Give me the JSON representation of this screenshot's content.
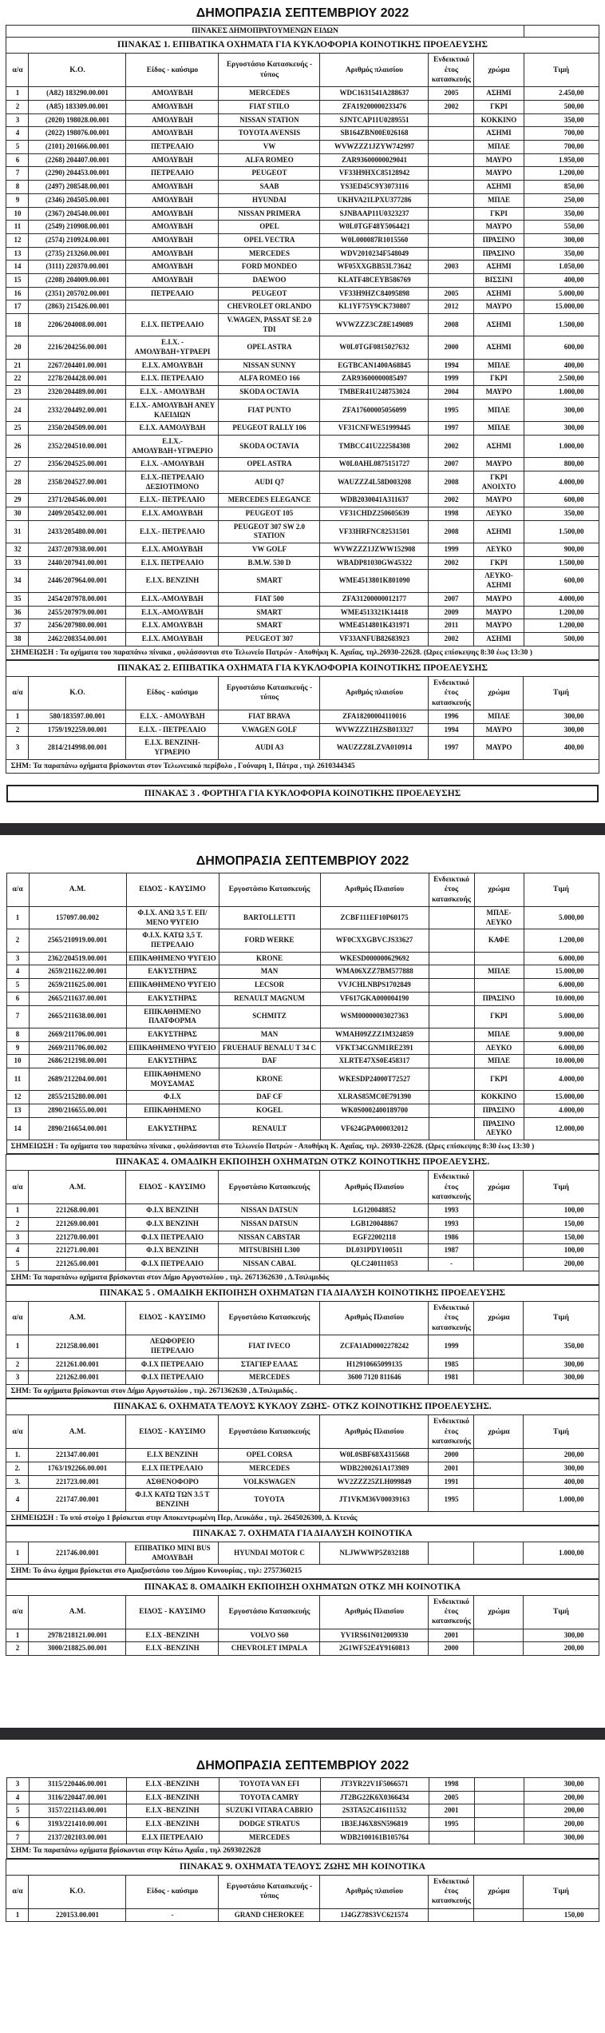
{
  "document": {
    "auction_title": "ΔΗΜΟΠΡΑΣΙΑ ΣΕΠΤΕΜΒΡΙΟΥ 2022",
    "catalog_header": "ΠΙΝΑΚΕΣ ΔΗΜΟΠΡΑΤΟΥΜΕΝΩΝ ΕΙΔΩΝ"
  },
  "columns_ko": [
    "α/α",
    "Κ.Ο.",
    "Είδος - καύσιμο",
    "Εργοστάσιο Κατασκευής - τύπος",
    "Αριθμός πλαισίου",
    "Ενδεικτικό έτος κατασκευής",
    "χρώμα",
    "Τιμή"
  ],
  "columns_am": [
    "α/α",
    "Α.Μ.",
    "ΕΙΔΟΣ - ΚΑΥΣΙΜΟ",
    "Εργοστάσιο Κατασκευής",
    "Αριθμός Πλαισίου",
    "Ενδεικτικό έτος κατασκευής",
    "χρώμα",
    "Τιμή"
  ],
  "table1": {
    "title": "ΠΙΝΑΚΑΣ 1.   ΕΠΙΒΑΤΙΚΑ ΟΧΗΜΑΤΑ ΓΙΑ ΚΥΚΛΟΦΟΡΙΑ ΚΟΙΝΟΤΙΚΗΣ ΠΡΟΕΛΕΥΣΗΣ",
    "note": "ΣΗΜΕΙΩΣΗ : Τα οχήματα του παραπάνω πίνακα , φυλάσσονται στο Τελωνείο Πατρών - Αποθήκη Κ. Αχαΐας, τηλ.26930-22628.      (Ωρες επίσκεψης 8:30 έως 13:30 )",
    "rows": [
      [
        "1",
        "(Α82) 183290.00.001",
        "ΑΜΟΛΥΒΔΗ",
        "MERCEDES",
        "WDC1631541A288637",
        "2005",
        "ΑΣΗΜΙ",
        "2.450,00"
      ],
      [
        "2",
        "(Α85) 183309.00.001",
        "ΑΜΟΛΥΒΔΗ",
        "FIAT STILO",
        "ZFA19200000233476",
        "2002",
        "ΓΚΡΙ",
        "500,00"
      ],
      [
        "3",
        "(2020) 198028.00.001",
        "ΑΜΟΛΥΒΔΗ",
        "NISSAN STATION",
        "SJNTCAP11U0289551",
        "",
        "ΚΟΚΚΙΝΟ",
        "350,00"
      ],
      [
        "4",
        "(2022) 198076.00.001",
        "ΑΜΟΛΥΒΔΗ",
        "TOYOTA AVENSIS",
        "SB164ZBN00E026168",
        "",
        "ΑΣΗΜΙ",
        "700,00"
      ],
      [
        "5",
        "(2101) 201666.00.001",
        "ΠΕΤΡΕΛΑΙΟ",
        "VW",
        "WVWZZZ1JZYW742997",
        "",
        "ΜΠΛΕ",
        "700,00"
      ],
      [
        "6",
        "(2268) 204407.00.001",
        "ΑΜΟΛΥΒΔΗ",
        "ALFA ROMEO",
        "ZAR93600000029041",
        "",
        "ΜΑΥΡΟ",
        "1.950,00"
      ],
      [
        "7",
        "(2290) 204453.00.001",
        "ΠΕΤΡΕΛΑΙΟ",
        "PEUGEOT",
        "VF33H9HXC85128942",
        "",
        "ΜΑΥΡΟ",
        "1.200,00"
      ],
      [
        "8",
        "(2497) 208548.00.001",
        "ΑΜΟΛΥΒΔΗ",
        "SAAB",
        "YS3ED45C9Y3073116",
        "",
        "ΑΣΗΜΙ",
        "850,00"
      ],
      [
        "9",
        "(2346) 204505.00.001",
        "ΑΜΟΛΥΒΔΗ",
        "HYUNDAI",
        "UKHVA21LPXU377286",
        "",
        "ΜΠΛΕ",
        "250,00"
      ],
      [
        "10",
        "(2367) 204540.00.001",
        "ΑΜΟΛΥΒΔΗ",
        "NISSAN PRIMERA",
        "SJNBAAP11U0323237",
        "",
        "ΓΚΡΙ",
        "350,00"
      ],
      [
        "11",
        "(2549) 210908.00.001",
        "ΑΜΟΛΥΒΔΗ",
        "OPEL",
        "W0L0TGF48Y5064421",
        "",
        "ΜΑΥΡΟ",
        "550,00"
      ],
      [
        "12",
        "(2574) 210924.00.001",
        "ΑΜΟΛΥΒΔΗ",
        "OPEL VECTRA",
        "W0L000087R1015560",
        "",
        "ΠΡΑΣΙΝΟ",
        "300,00"
      ],
      [
        "13",
        "(2735) 213260.00.001",
        "ΑΜΟΛΥΒΔΗ",
        "MERCEDES",
        "WDV2010234F548049",
        "",
        "ΠΡΑΣΙΝΟ",
        "350,00"
      ],
      [
        "14",
        "(3111) 220370.00.001",
        "ΑΜΟΛΥΒΔΗ",
        "FORD MONDEO",
        "WF05XXGBB53L73642",
        "2003",
        "ΑΣΗΜΙ",
        "1.050,00"
      ],
      [
        "15",
        "(2208) 204009.00.001",
        "ΑΜΟΛΥΒΔΗ",
        "DAEWOO",
        "KLATF48CEYB586769",
        "",
        "ΒΙΣΣΙΝΙ",
        "400,00"
      ],
      [
        "16",
        "(2351) 205702.00.001",
        "ΠΕΤΡΕΛΑΙΟ",
        "PEUGEOT",
        "VF33H9HZC84095898",
        "2005",
        "ΑΣΗΜΙ",
        "5.000,00"
      ],
      [
        "17",
        "(2863) 215426.00.001",
        "",
        "CHEVROLET ORLANDO",
        "KL1YF75Y9CK730807",
        "2012",
        "ΜΑΥΡΟ",
        "15.000,00"
      ],
      [
        "18",
        "2206/204008.00.001",
        "Ε.Ι.Χ. ΠΕΤΡΕΛΑΙΟ",
        "V.WAGEN, PASSAT SE 2.0 TDI",
        "WVWZZZ3CZ8E149089",
        "2008",
        "ΑΣΗΜΙ",
        "1.500,00"
      ],
      [
        "20",
        "2216/204256.00.001",
        "Ε.Ι.Χ. - ΑΜΟΛΥΒΔΗ+ΥΓΡΑΕΡΙ",
        "OPEL ASTRA",
        "W0L0TGF0815027632",
        "2000",
        "ΑΣΗΜΙ",
        "600,00"
      ],
      [
        "21",
        "2267/204401.00.001",
        "Ε.Ι.Χ. ΑΜΟΛΥΒΔΗ",
        "NISSAN SUNNY",
        "EGTBCAN1400A68845",
        "1994",
        "ΜΠΛΕ",
        "400,00"
      ],
      [
        "22",
        "2278/204428.00.001",
        "Ε.Ι.Χ. ΠΕΤΡΕΛΑΙΟ",
        "ALFA ROMEO 166",
        "ZAR93600000085497",
        "1999",
        "ΓΚΡΙ",
        "2.500,00"
      ],
      [
        "23",
        "2320/204489.00.001",
        "Ε.Ι.Χ. - ΑΜΟΛΥΒΔΗ",
        "SKODA OCTAVIA",
        "TMBER41U248753024",
        "2004",
        "ΜΑΥΡΟ",
        "1.000,00"
      ],
      [
        "24",
        "2332/204492.00.001",
        "Ε.Ι.Χ.- ΑΜΟΛΥΒΔΗ ΑΝΕΥ ΚΛΕΙΔΙΩΝ",
        "FIAT PUNTO",
        "ZFA17600005056099",
        "1995",
        "ΜΠΛΕ",
        "300,00"
      ],
      [
        "25",
        "2350/204509.00.001",
        "Ε.Ι.Χ. ΑΑΜΟΛΥΒΔΗ",
        "PEUGEOT RALLY 106",
        "VF31CNFWE51999445",
        "1997",
        "ΜΠΛΕ",
        "300,00"
      ],
      [
        "26",
        "2352/204510.00.001",
        "Ε.Ι.Χ.- ΑΜΟΛΥΒΔΗ+ΥΓΡΑΕΡΙΟ",
        "SKODA OCTAVIA",
        "TMBCC41U222584308",
        "2002",
        "ΑΣΗΜΙ",
        "1.000,00"
      ],
      [
        "27",
        "2356/204525.00.001",
        "Ε.Ι.Χ. -ΑΜΟΛΥΒΔΗ",
        "OPEL ASTRA",
        "W0L0AHL0875151727",
        "2007",
        "ΜΑΥΡΟ",
        "800,00"
      ],
      [
        "28",
        "2358/204527.00.001",
        "Ε.Ι.Χ.-ΠΕΤΡΕΛΑΙΟ ΔΕΞΙΟΤΙΜΟΝΟ",
        "AUDI Q7",
        "WAUZZZ4L58D003208",
        "2008",
        "ΓΚΡΙ ΑΝΟΙΧΤΟ",
        "4.000,00"
      ],
      [
        "29",
        "2371/204546.00.001",
        "Ε.Ι.Χ.- ΠΕΤΡΕΛΑΙΟ",
        "MERCEDES ELEGANCE",
        "WDB2030041A311637",
        "2002",
        "ΜΑΥΡΟ",
        "600,00"
      ],
      [
        "30",
        "2409/205432.00.001",
        "Ε.Ι.Χ. ΑΜΟΛΥΒΔΗ",
        "PEUGEOT 105",
        "VF31CHDZ250605639",
        "1998",
        "ΛΕΥΚΟ",
        "350,00"
      ],
      [
        "31",
        "2433/205480.00.001",
        "Ε.Ι.Χ.- ΠΕΤΡΕΛΑΙΟ",
        "PEUGEOT 307 SW 2.0 STATION",
        "VF33HRFNC82531501",
        "2008",
        "ΑΣΗΜΙ",
        "1.500,00"
      ],
      [
        "32",
        "2437/207938.00.001",
        "Ε.Ι.Χ. ΑΜΟΛΥΒΔΗ",
        "VW GOLF",
        "WVWZZZ1JZWW152908",
        "1999",
        "ΛΕΥΚΟ",
        "900,00"
      ],
      [
        "33",
        "2440/207941.00.001",
        "Ε.Ι.Χ. ΠΕΤΡΕΛΑΙΟ",
        "B.M.W. 530 D",
        "WBADP81030GW45322",
        "2002",
        "ΓΚΡΙ",
        "1.500,00"
      ],
      [
        "34",
        "2446/207964.00.001",
        "Ε.Ι.Χ.  ΒΕΝΖΙΝΗ",
        "SMART",
        "WME4513801K801090",
        "",
        "ΛΕΥΚΟ-ΑΣΗΜΙ",
        "600,00"
      ],
      [
        "35",
        "2454/207978.00.001",
        "Ε.Ι.Χ.-ΑΜΟΛΥΒΔΗ",
        "FIAT 500",
        "ZFA31200000012177",
        "2007",
        "ΜΑΥΡΟ",
        "4.000,00"
      ],
      [
        "36",
        "2455/207979.00.001",
        "Ε.Ι.Χ.-ΑΜΟΛΥΒΔΗ",
        "SMART",
        "WME4513321K14418",
        "2009",
        "ΜΑΥΡΟ",
        "1.200,00"
      ],
      [
        "37",
        "2456/207980.00.001",
        "Ε.Ι.Χ. ΑΜΟΛΥΒΔΗ",
        "SMART",
        "WME4514801K431971",
        "2011",
        "ΜΑΥΡΟ",
        "1.200,00"
      ],
      [
        "38",
        "2462/208354.00.001",
        "Ε.Ι.Χ. ΑΜΟΛΥΒΔΗ",
        "PEUGEOT 307",
        "VF33ANFUB82683923",
        "2002",
        "ΑΣΗΜΙ",
        "500,00"
      ]
    ]
  },
  "table2": {
    "title": "ΠΙΝΑΚΑΣ 2.   ΕΠΙΒΑΤΙΚΑ ΟΧΗΜΑΤΑ ΓΙΑ ΚΥΚΛΟΦΟΡΙΑ ΚΟΙΝΟΤΙΚΗΣ ΠΡΟΕΛΕΥΣΗΣ",
    "note": "ΣΗΜ: Τα παραπάνω οχήματα  βρίσκονται στον Τελωνειακό περίβολο , Γούναρη 1, Πάτρα ,  τηλ 2610344345",
    "rows": [
      [
        "1",
        "580/183597.00.001",
        "Ε.Ι.Χ. - ΑΜΟΛΥΒΔΗ",
        "FIAT BRAVA",
        "ZFA18200004110016",
        "1996",
        "ΜΠΛΕ",
        "300,00"
      ],
      [
        "2",
        "1759/192259.00.001",
        "Ε.Ι.Χ. - ΠΕΤΡΕΛΑΙΟ",
        "V.WAGEN GOLF",
        "WVWZZZ1HZSB013327",
        "1994",
        "ΜΑΥΡΟ",
        "300,00"
      ],
      [
        "3",
        "2814/214998.00.001",
        "Ε.Ι.Χ. ΒΕΝΖΙΝΗ-ΥΓΡΑΕΡΙΟ",
        "AUDI A3",
        "WAUZZZ8LZVA010914",
        "1997",
        "ΜΑΥΡΟ",
        "400,00"
      ]
    ]
  },
  "table3": {
    "title": "ΠΙΝΑΚΑΣ 3 .   ΦΟΡΤΗΓΑ  ΓΙΑ ΚΥΚΛΟΦΟΡΙΑ ΚΟΙΝΟΤΙΚΗΣ ΠΡΟΕΛΕΥΣΗΣ"
  },
  "trucks": {
    "note": "ΣΗΜΕΙΩΣΗ : Τα οχήματα του παραπάνω πίνακα , φυλάσσονται στο Τελωνείο Πατρών - Αποθήκη Κ. Αχαΐας, τηλ. 26930-22628.        (Ωρες επίσκεψης 8:30 έως 13:30 )",
    "rows": [
      [
        "1",
        "157097.00.002",
        "Φ.Ι.Χ. ΑΝΩ 3,5 Τ. ΕΠ/ΜΕΝΟ ΨΥΓΕΙΟ",
        "BARTOLLETTI",
        "ZCBF111EF10P60175",
        "",
        "ΜΠΛΕ-ΛΕΥΚΟ",
        "5.000,00"
      ],
      [
        "2",
        "2565/210919.00.001",
        "Φ.Ι.Χ. ΚΑΤΩ 3,5 Τ. ΠΕΤΡΕΛΑΙΟ",
        "FORD  WERKE",
        "WF0CXXGBVCJS33627",
        "",
        "ΚΑΦΕ",
        "1.200,00"
      ],
      [
        "3",
        "2362/204519.00.001",
        "ΕΠΙΚΑΘΗΜΕΝΟ ΨΥΓΕΙΟ",
        "KRONE",
        "WKESD000000629692",
        "",
        "",
        "6.000,00"
      ],
      [
        "4",
        "2659/211622.00.001",
        "ΕΛΚΥΣΤΗΡΑΣ",
        "MAN",
        "WMA06XZZ7BM577888",
        "",
        "ΜΠΛΕ",
        "15.000,00"
      ],
      [
        "5",
        "2659/211625.00.001",
        "ΕΠΙΚΑΘΗΜΕΝΟ ΨΥΓΕΙΟ",
        "LECSOR",
        "VVJCHLNBPS1702849",
        "",
        "",
        "6.000,00"
      ],
      [
        "6",
        "2665/211637.00.001",
        "ΕΛΚΥΣΤΗΡΑΣ",
        "RENAULT MAGNUM",
        "VF617GKA000004190",
        "",
        "ΠΡΑΣΙΝΟ",
        "10.000,00"
      ],
      [
        "7",
        "2665/211638.00.001",
        "ΕΠΙΚΑΘΗΜΕΝΟ ΠΛΑΤΦΟΡΜΑ",
        "SCHMITZ",
        "WSM00000003027363",
        "",
        "ΓΚΡΙ",
        "5.000,00"
      ],
      [
        "8",
        "2669/211706.00.001",
        "ΕΛΚΥΣΤΗΡΑΣ",
        "MAN",
        "WMAH09ZZZ1M324859",
        "",
        "ΜΠΛΕ",
        "9.000,00"
      ],
      [
        "9",
        "2669/211706.00.002",
        "ΕΠΙΚΑΘΗΜΕΝΟ ΨΥΓΕΙΟ",
        "FRUEHAUF BENALU T 34 C",
        "VFKT34CGNM1RE2391",
        "",
        "ΛΕΥΚΟ",
        "6.000,00"
      ],
      [
        "10",
        "2686/212198.00.001",
        "ΕΛΚΥΣΤΗΡΑΣ",
        "DAF",
        "XLRTE47XS0E458317",
        "",
        "ΜΠΛΕ",
        "10.000,00"
      ],
      [
        "11",
        "2689/212204.00.001",
        "ΕΠΙΚΑΘΗΜΕΝΟ ΜΟΥΣΑΜΑΣ",
        "KRONE",
        "WKESDP24000T72527",
        "",
        "ΓΚΡΙ",
        "4.000,00"
      ],
      [
        "12",
        "2855/215280.00.001",
        "Φ.Ι.Χ",
        "DAF CF",
        "XLRAS85MC0E791390",
        "",
        "ΚΟΚΚΙΝΟ",
        "15.000,00"
      ],
      [
        "13",
        "2890/216655.00.001",
        "ΕΠΙΚΑΘΗΜΕΝΟ",
        "KOGEL",
        "WK0S0002400189700",
        "",
        "ΠΡΑΣΙΝΟ",
        "4.000,00"
      ],
      [
        "14",
        "2890/216654.00.001",
        "ΕΛΚΥΣΤΗΡΑΣ",
        "RENAULT",
        "VF624GPA000032012",
        "",
        "ΠΡΑΣΙΝΟ ΛΕΥΚΟ",
        "12.000,00"
      ]
    ]
  },
  "table4": {
    "title": "ΠΙΝΑΚΑΣ 4.  ΟΜΑΔΙΚΗ ΕΚΠΟΙΗΣΗ ΟΧΗΜΑΤΩΝ  ΟΤΚΖ ΚΟΙΝΟΤΙΚΗΣ ΠΡΟΕΛΕΥΣΗΣ.",
    "note": "ΣΗΜ: Τα παραπάνω οχήματα βρίσκονται στον Δήμο Αργοστολίου , τηλ. 2671362630 , Δ.Τσιλιμιδός",
    "rows": [
      [
        "1",
        "221268.00.001",
        "Φ.Ι.Χ ΒΕΝΖΙΝΗ",
        "NISSAN DATSUN",
        "LG120048852",
        "1993",
        "",
        "100,00"
      ],
      [
        "2",
        "221269.00.001",
        "Φ.Ι.Χ ΒΕΝΖΙΝΗ",
        "NISSAN DATSUN",
        "LGB120048867",
        "1993",
        "",
        "150,00"
      ],
      [
        "3",
        "221270.00.001",
        "Φ.Ι.Χ ΠΕΤΡΕΛΑΙΟ",
        "NISSAN CABSTAR",
        "EGF22002118",
        "1986",
        "",
        "150,00"
      ],
      [
        "4",
        "221271.00.001",
        "Φ.Ι.Χ ΒΕΝΖΙΝΗ",
        "MITSUBISHI L300",
        "DL031PDY100511",
        "1987",
        "",
        "100,00"
      ],
      [
        "5",
        "221265.00.001",
        "Φ.Ι.Χ ΠΕΤΡΕΛΑΙΟ",
        "NISSAN CABAL",
        "QLC240111053",
        "-",
        "",
        "200,00"
      ]
    ]
  },
  "table5": {
    "title": "ΠΙΝΑΚΑΣ 5 . ΟΜΑΔΙΚΗ ΕΚΠΟΙΗΣΗ ΟΧΗΜΑΤΩΝ ΓΙΑ ΔΙΑΛΥΣΗ ΚΟΙΝΟΤΙΚΗΣ ΠΡΟΕΛΕΥΣΗΣ",
    "note": "ΣΗΜ: Τα οχήματα βρίσκονται στον Δήμο Αργοστολίου , τηλ. 2671362630 , Δ.Τσιλιμιδός .",
    "rows": [
      [
        "1",
        "221258.00.001",
        "ΛΕΩΦΟΡΕΙΟ ΠΕΤΡΕΛΑΙΟ",
        "FIAT IVECO",
        "ZCFA1AD0002278242",
        "1999",
        "",
        "350,00"
      ],
      [
        "2",
        "221261.00.001",
        "Φ.Ι.Χ ΠΕΤΡΕΛΑΙΟ",
        "ΣΤΑΓΙΕΡ ΕΛΛΑΣ",
        "H12910665099135",
        "1985",
        "",
        "300,00"
      ],
      [
        "3",
        "221262.00.001",
        "Φ.Ι.Χ ΠΕΤΡΕΛΑΙΟ",
        "MERCEDES",
        "3600 7120 811646",
        "1981",
        "",
        "300,00"
      ]
    ]
  },
  "table6": {
    "title": "ΠΙΝΑΚΑΣ 6. ΟΧΗΜΑΤΑ ΤΕΛΟΥΣ ΚΥΚΛΟΥ ΖΩΗΣ- ΟΤΚΖ ΚΟΙΝΟΤΙΚΗΣ ΠΡΟΕΛΕΥΣΗΣ.",
    "note": "ΣΗΜΕΙΩΣΗ : Το υπό στοίχο 1 βρίσκεται στην Αποκεντρωμένη Περ, Λευκάδα , τηλ. 2645026300, Δ. Κτενάς",
    "rows": [
      [
        "1.",
        "221347.00.001",
        "Ε.Ι.Χ ΒΕΝΖΙΝΗ",
        "OPEL CORSA",
        "W0L0SBF68X4315668",
        "2000",
        "",
        "200,00"
      ],
      [
        "2.",
        "1763/192266.00.001",
        "Ε.Ι.Χ ΠΕΤΡΕΛΑΙΟ",
        "MERCEDES",
        "WDB2200261A173989",
        "2001",
        "",
        "300,00"
      ],
      [
        "3.",
        "221723.00.001",
        "ΑΣΘΕΝΟΦΟΡΟ",
        "VOLKSWAGEN",
        "WV2ZZZ25ZLH099849",
        "1991",
        "",
        "400,00"
      ],
      [
        "4",
        "221747.00.001",
        "Φ.Ι.Χ  ΚΑΤΩ ΤΩΝ 3.5 Τ ΒΕΝΖΙΝΗ",
        "TOYOTA",
        "JT1VKM36V00039163",
        "1995",
        "",
        "1.000,00"
      ]
    ]
  },
  "table7": {
    "title": "ΠΙΝΑΚΑΣ 7.  ΟΧΗΜΑΤΑ ΓΙΑ ΔΙΑΛΥΣΗ  ΚΟΙΝΟΤΙΚΑ",
    "note": "ΣΗΜ: Το άνω  όχημα βρίσκεται στο Αμαξοστάσιο του Δήμου Κυνουρίας , τηλ: 2757360215",
    "rows": [
      [
        "1",
        "221746.00.001",
        "ΕΠΙΒΑΤΙΚΟ MINI BUS ΑΜΟΛΥΒΔΗ",
        "HYUNDAI MOTOR C",
        "NLJWWWP5Z032188",
        "",
        "",
        "1.000,00"
      ]
    ]
  },
  "table8": {
    "title": "ΠΙΝΑΚΑΣ 8.  ΟΜΑΔΙΚΗ ΕΚΠΟΙΗΣΗ ΟΧΗΜΑΤΩΝ  ΟΤΚΖ  ΜΗ ΚΟΙΝΟΤΙΚΑ",
    "rows": [
      [
        "1",
        "2978/218121.00.001",
        "Ε.Ι.Χ -ΒΕΝΖΙΝΗ",
        "VOLVO S60",
        "YV1RS61N012009330",
        "2001",
        "",
        "300,00"
      ],
      [
        "2",
        "3000/218825.00.001",
        "Ε.Ι.Χ -ΒΕΝΖΙΝΗ",
        "CHEVROLET IMPALA",
        "2G1WF52E4Y9160813",
        "2000",
        "",
        "200,00"
      ]
    ]
  },
  "table8cont": {
    "note": "ΣΗΜ: Τα παραπάνω οχήματα βρίσκονται στην Κάτω Αχαΐα , τηλ 2693022628",
    "rows": [
      [
        "3",
        "3115/220446.00.001",
        "Ε.Ι.Χ -ΒΕΝΖΙΝΗ",
        "TOYOTA VAN EFI",
        "JT3YR22V1F5066571",
        "1998",
        "",
        "300,00"
      ],
      [
        "4",
        "3116/220447.00.001",
        "Ε.Ι.Χ -ΒΕΝΖΙΝΗ",
        "TOYOTA CAMRY",
        "JT2BG22K6X0366434",
        "2005",
        "",
        "200,00"
      ],
      [
        "5",
        "3157/221143.00.001",
        "Ε.Ι.Χ -ΒΕΝΖΙΝΗ",
        "SUZUKI VITARA CABRIO",
        "2S3TA52C416111532",
        "2001",
        "",
        "200,00"
      ],
      [
        "6",
        "3193/221410.00.001",
        "Ε.Ι.Χ -ΒΕΝΖΙΝΗ",
        "DODGE STRATUS",
        "1B3EJ46X8SN596819",
        "1995",
        "",
        "200,00"
      ],
      [
        "7",
        "2137/202103.00.001",
        "Ε.Ι.Χ ΠΕΤΡΕΛΑΙΟ",
        "MERCEDES",
        "WDB2100161B105764",
        "",
        "",
        "300,00"
      ]
    ]
  },
  "table9": {
    "title": "ΠΙΝΑΚΑΣ 9.   ΟΧΗΜΑΤΑ ΤΕΛΟΥΣ ΖΩΗΣ ΜΗ ΚΟΙΝΟΤΙΚΑ",
    "rows": [
      [
        "1",
        "220153.00.001",
        "-",
        "GRAND CHEROKEE",
        "1J4GZ78S3VC621574",
        "",
        "",
        "150,00"
      ]
    ]
  }
}
